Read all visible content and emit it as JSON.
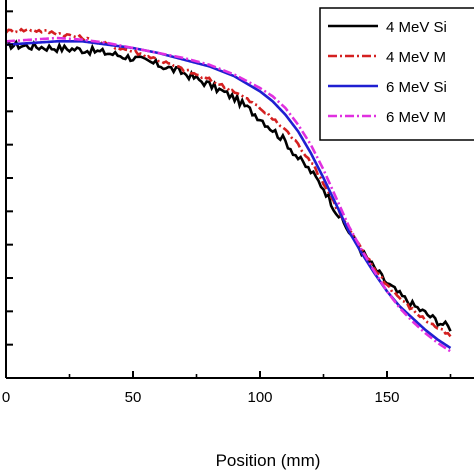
{
  "chart_data": {
    "type": "line",
    "xlabel": "Position (mm)",
    "ylabel": "",
    "xlim": [
      0,
      175
    ],
    "ylim": [
      0,
      1.14
    ],
    "x_ticks": [
      0,
      50,
      100,
      150
    ],
    "x_tick_labels": [
      "0",
      "50",
      "100",
      "150"
    ],
    "y_ticks": [
      0.1,
      0.2,
      0.3,
      0.4,
      0.5,
      0.6,
      0.7,
      0.8,
      0.9,
      1.0,
      1.1
    ],
    "grid": false,
    "legend_position": "top-right",
    "series": [
      {
        "name": "4 MeV Si",
        "color": "#000000",
        "dash": "solid",
        "noise": 0.012,
        "x": [
          0,
          10,
          20,
          30,
          40,
          50,
          60,
          70,
          80,
          90,
          100,
          110,
          115,
          120,
          125,
          130,
          135,
          140,
          145,
          150,
          155,
          160,
          165,
          170,
          175
        ],
        "y": [
          1.0,
          0.995,
          0.99,
          0.985,
          0.975,
          0.96,
          0.94,
          0.915,
          0.88,
          0.84,
          0.78,
          0.71,
          0.66,
          0.62,
          0.57,
          0.5,
          0.44,
          0.38,
          0.33,
          0.285,
          0.25,
          0.22,
          0.195,
          0.17,
          0.15
        ]
      },
      {
        "name": "4 MeV M",
        "color": "#d42020",
        "dash": "9,3,2,3",
        "noise": 0.006,
        "x": [
          0,
          10,
          20,
          30,
          40,
          50,
          60,
          70,
          80,
          90,
          100,
          110,
          115,
          120,
          125,
          130,
          135,
          140,
          145,
          150,
          155,
          160,
          165,
          170,
          175
        ],
        "y": [
          1.04,
          1.045,
          1.035,
          1.02,
          1.0,
          0.98,
          0.955,
          0.925,
          0.895,
          0.86,
          0.81,
          0.745,
          0.7,
          0.65,
          0.585,
          0.515,
          0.445,
          0.385,
          0.33,
          0.28,
          0.24,
          0.205,
          0.175,
          0.15,
          0.125
        ]
      },
      {
        "name": "6 MeV Si",
        "color": "#1f1fd1",
        "dash": "solid",
        "noise": 0.0,
        "x": [
          0,
          10,
          20,
          30,
          40,
          50,
          60,
          70,
          80,
          90,
          100,
          105,
          110,
          115,
          120,
          125,
          130,
          135,
          140,
          145,
          150,
          155,
          160,
          165,
          170,
          175
        ],
        "y": [
          1.0,
          1.005,
          1.01,
          1.01,
          1.0,
          0.99,
          0.975,
          0.955,
          0.935,
          0.905,
          0.86,
          0.83,
          0.79,
          0.74,
          0.675,
          0.6,
          0.52,
          0.44,
          0.375,
          0.315,
          0.26,
          0.215,
          0.18,
          0.145,
          0.115,
          0.09
        ]
      },
      {
        "name": "6 MeV M",
        "color": "#e030e0",
        "dash": "9,3,2,3",
        "noise": 0.0,
        "x": [
          0,
          10,
          20,
          30,
          40,
          50,
          60,
          70,
          80,
          90,
          100,
          105,
          110,
          115,
          120,
          125,
          130,
          135,
          140,
          145,
          150,
          155,
          160,
          165,
          170,
          175
        ],
        "y": [
          1.01,
          1.015,
          1.02,
          1.015,
          1.005,
          0.99,
          0.975,
          0.96,
          0.94,
          0.91,
          0.87,
          0.845,
          0.81,
          0.76,
          0.7,
          0.625,
          0.54,
          0.455,
          0.385,
          0.32,
          0.26,
          0.21,
          0.17,
          0.135,
          0.105,
          0.08
        ]
      }
    ]
  }
}
